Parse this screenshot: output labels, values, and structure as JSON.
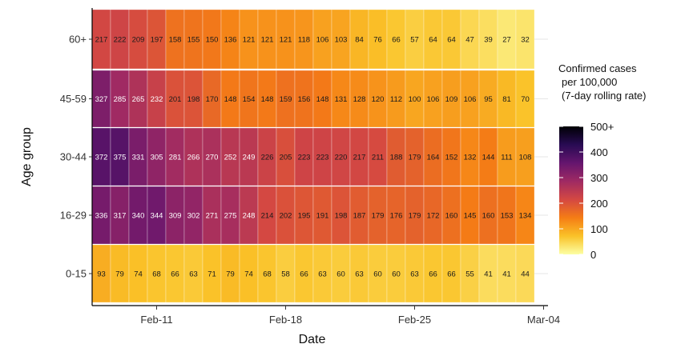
{
  "chart_data": {
    "type": "heatmap",
    "xlabel": "Date",
    "ylabel": "Age group",
    "x_tick_labels": [
      "Feb-11",
      "Feb-18",
      "Feb-25",
      "Mar-04"
    ],
    "x_tick_dates": [
      "2021-02-11",
      "2021-02-18",
      "2021-02-25",
      "2021-03-04"
    ],
    "dates": [
      "2021-02-08",
      "2021-02-09",
      "2021-02-10",
      "2021-02-11",
      "2021-02-12",
      "2021-02-13",
      "2021-02-14",
      "2021-02-15",
      "2021-02-16",
      "2021-02-17",
      "2021-02-18",
      "2021-02-19",
      "2021-02-20",
      "2021-02-21",
      "2021-02-22",
      "2021-02-23",
      "2021-02-24",
      "2021-02-25",
      "2021-02-26",
      "2021-02-27",
      "2021-02-28",
      "2021-03-01",
      "2021-03-02",
      "2021-03-03"
    ],
    "rows": [
      {
        "label": "60+",
        "values": [
          217,
          222,
          209,
          197,
          158,
          155,
          150,
          136,
          121,
          121,
          121,
          118,
          106,
          103,
          84,
          76,
          66,
          57,
          64,
          64,
          47,
          39,
          27,
          32
        ]
      },
      {
        "label": "45-59",
        "values": [
          327,
          285,
          265,
          232,
          201,
          198,
          170,
          148,
          154,
          148,
          159,
          156,
          148,
          131,
          128,
          120,
          112,
          100,
          106,
          109,
          106,
          95,
          81,
          70
        ]
      },
      {
        "label": "30-44",
        "values": [
          372,
          375,
          331,
          305,
          281,
          266,
          270,
          252,
          249,
          226,
          205,
          223,
          223,
          220,
          217,
          211,
          188,
          179,
          164,
          152,
          132,
          144,
          111,
          108
        ]
      },
      {
        "label": "16-29",
        "values": [
          336,
          317,
          340,
          344,
          309,
          302,
          271,
          275,
          248,
          214,
          202,
          195,
          191,
          198,
          187,
          179,
          176,
          179,
          172,
          160,
          145,
          160,
          153,
          134
        ]
      },
      {
        "label": "0-15",
        "values": [
          93,
          79,
          74,
          68,
          66,
          63,
          71,
          79,
          74,
          68,
          58,
          66,
          63,
          60,
          63,
          60,
          60,
          63,
          66,
          66,
          55,
          41,
          41,
          44
        ]
      }
    ],
    "legend": {
      "title_lines": [
        "Confirmed cases",
        "per 100,000",
        "(7-day rolling rate)"
      ],
      "ticks": [
        {
          "value": 500,
          "label": "500+"
        },
        {
          "value": 400,
          "label": "400"
        },
        {
          "value": 300,
          "label": "300"
        },
        {
          "value": 200,
          "label": "200"
        },
        {
          "value": 100,
          "label": "100"
        },
        {
          "value": 0,
          "label": "0"
        }
      ],
      "range": [
        0,
        500
      ],
      "placement": "right",
      "colors": [
        "#fcffa4",
        "#fac228",
        "#f57d15",
        "#d44842",
        "#9f2a63",
        "#65156e",
        "#280b53",
        "#000004"
      ]
    },
    "grid": true
  }
}
